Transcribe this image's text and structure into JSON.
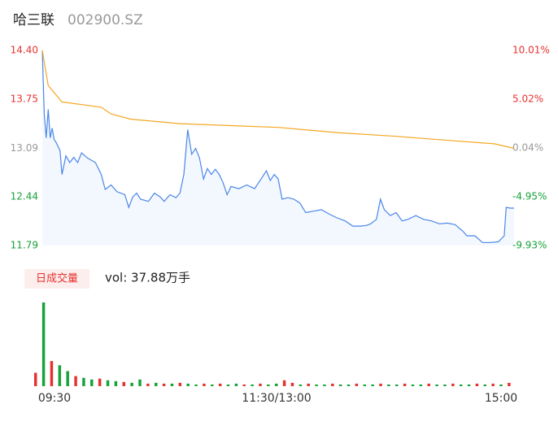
{
  "chart_data": {
    "type": "intraday",
    "title": "哈三联",
    "subtitle": "002900.SZ",
    "xlim": [
      0,
      240
    ],
    "xticks": [
      {
        "value": 0,
        "label": "09:30"
      },
      {
        "value": 120,
        "label": "11:30/13:00"
      },
      {
        "value": 240,
        "label": "15:00"
      }
    ],
    "ylim": [
      11.79,
      14.4
    ],
    "yticks": [
      {
        "value": 14.4,
        "label": "14.40"
      },
      13.75,
      13.09,
      12.44,
      11.79
    ],
    "y2lim": [
      -9.93,
      10.01
    ],
    "y2ticks": [
      {
        "value": 10.01,
        "label": "10.01%"
      },
      {
        "value": 5.02,
        "label": "5.02%"
      },
      {
        "value": 0.04,
        "label": "0.04%"
      },
      {
        "value": -4.95,
        "label": "-4.95%"
      },
      {
        "value": -9.93,
        "label": "-9.93%"
      }
    ],
    "up_color": "#e8312f",
    "down_color": "#17a23a",
    "flat_color": "#999999",
    "series": [
      {
        "color": "#4a87e8",
        "x": [
          0,
          1,
          2,
          3,
          4,
          5,
          6,
          7,
          9,
          10,
          12,
          14,
          16,
          18,
          20,
          23,
          27,
          30,
          32,
          35,
          38,
          42,
          44,
          46,
          48,
          50,
          54,
          57,
          60,
          62,
          65,
          68,
          70,
          72,
          74,
          76,
          78,
          80,
          82,
          84,
          86,
          88,
          90,
          92,
          94,
          96,
          100,
          104,
          108,
          112,
          114,
          116,
          118,
          120,
          122,
          125,
          128,
          131,
          134,
          138,
          142,
          146,
          150,
          154,
          158,
          162,
          165,
          167,
          170,
          172,
          174,
          177,
          180,
          183,
          186,
          190,
          194,
          198,
          202,
          206,
          210,
          214,
          216,
          220,
          224,
          228,
          232,
          235,
          236,
          238,
          240
        ],
        "values": [
          14.4,
          13.55,
          13.23,
          13.61,
          13.23,
          13.36,
          13.21,
          13.17,
          13.06,
          12.74,
          12.99,
          12.9,
          12.97,
          12.9,
          13.03,
          12.96,
          12.9,
          12.74,
          12.54,
          12.6,
          12.51,
          12.47,
          12.3,
          12.44,
          12.49,
          12.41,
          12.38,
          12.49,
          12.44,
          12.38,
          12.47,
          12.43,
          12.49,
          12.74,
          13.34,
          13.01,
          13.09,
          12.96,
          12.68,
          12.82,
          12.74,
          12.81,
          12.74,
          12.63,
          12.47,
          12.58,
          12.55,
          12.6,
          12.55,
          12.71,
          12.79,
          12.66,
          12.74,
          12.68,
          12.41,
          12.43,
          12.41,
          12.36,
          12.23,
          12.25,
          12.27,
          12.21,
          12.16,
          12.12,
          12.05,
          12.05,
          12.06,
          12.08,
          12.14,
          12.41,
          12.27,
          12.19,
          12.23,
          12.12,
          12.14,
          12.19,
          12.14,
          12.12,
          12.08,
          12.09,
          12.07,
          11.98,
          11.92,
          11.92,
          11.83,
          11.83,
          11.84,
          11.92,
          12.3,
          12.29,
          12.29
        ]
      },
      {
        "color": "#f5a623",
        "x": [
          0,
          3,
          10,
          30,
          35,
          45,
          70,
          100,
          120,
          150,
          180,
          210,
          230,
          240
        ],
        "values": [
          14.4,
          13.93,
          13.71,
          13.64,
          13.55,
          13.48,
          13.42,
          13.39,
          13.37,
          13.3,
          13.25,
          13.19,
          13.15,
          13.09
        ]
      }
    ],
    "volume": {
      "label": "日成交量",
      "text": "vol: 37.88万手",
      "ylim": [
        0,
        100
      ],
      "values": [
        16,
        100,
        30,
        25,
        18,
        12,
        10,
        8,
        9,
        7,
        6,
        5,
        4,
        8,
        3,
        4,
        3,
        3,
        4,
        3,
        2,
        3,
        2,
        3,
        2,
        3,
        2,
        2,
        3,
        2,
        3,
        7,
        4,
        2,
        3,
        2,
        2,
        3,
        2,
        2,
        3,
        2,
        2,
        3,
        2,
        2,
        3,
        2,
        2,
        3,
        2,
        2,
        3,
        2,
        2,
        3,
        2,
        3,
        2,
        4
      ],
      "colors": [
        "#e8312f",
        "#17a23a",
        "#e8312f",
        "#17a23a",
        "#17a23a",
        "#e8312f",
        "#17a23a",
        "#17a23a",
        "#e8312f",
        "#17a23a",
        "#17a23a",
        "#e8312f",
        "#17a23a",
        "#17a23a",
        "#e8312f",
        "#17a23a",
        "#e8312f",
        "#17a23a",
        "#e8312f",
        "#17a23a",
        "#17a23a",
        "#e8312f",
        "#17a23a",
        "#e8312f",
        "#17a23a",
        "#17a23a",
        "#e8312f",
        "#17a23a",
        "#e8312f",
        "#17a23a",
        "#17a23a",
        "#e8312f",
        "#e8312f",
        "#17a23a",
        "#e8312f",
        "#17a23a",
        "#17a23a",
        "#e8312f",
        "#17a23a",
        "#17a23a",
        "#e8312f",
        "#17a23a",
        "#17a23a",
        "#e8312f",
        "#17a23a",
        "#17a23a",
        "#e8312f",
        "#17a23a",
        "#17a23a",
        "#e8312f",
        "#17a23a",
        "#17a23a",
        "#e8312f",
        "#17a23a",
        "#17a23a",
        "#e8312f",
        "#17a23a",
        "#e8312f",
        "#17a23a",
        "#e8312f"
      ]
    }
  }
}
